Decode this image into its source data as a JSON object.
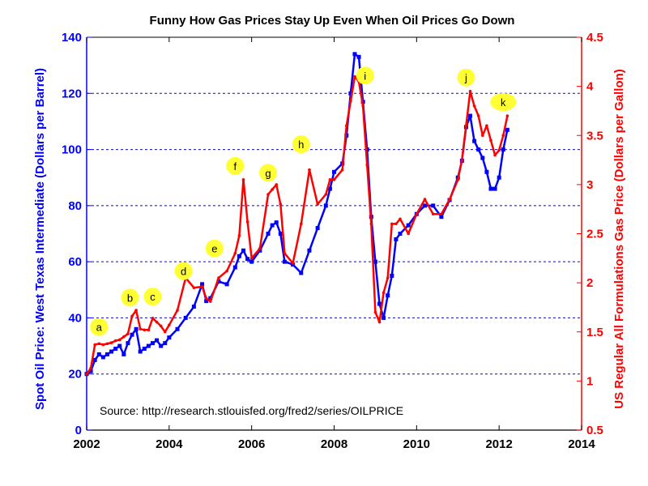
{
  "chart_data": {
    "type": "line",
    "title": "Funny How Gas Prices Stay Up Even When Oil Prices Go Down",
    "ylabel_left": "Spot Oil Price: West Texas Intermediate (Dollars per Barrel)",
    "ylabel_right": "US Regular All Formulations Gas Price (Dollars per Gallon)",
    "source": "Source: http://research.stlouisfed.org/fred2/series/OILPRICE",
    "xlim": [
      2002,
      2014
    ],
    "ylim_left": [
      0,
      140
    ],
    "ylim_right": [
      0.5,
      4.5
    ],
    "x_ticks": [
      "2002",
      "2004",
      "2006",
      "2008",
      "2010",
      "2012",
      "2014"
    ],
    "y_ticks_left": [
      "0",
      "20",
      "40",
      "60",
      "80",
      "100",
      "120",
      "140"
    ],
    "y_ticks_right": [
      "0.5",
      "1",
      "1.5",
      "2",
      "2.5",
      "3",
      "3.5",
      "4",
      "4.5"
    ],
    "grid": "dashed horizontal",
    "colors": {
      "oil": "#0000ff",
      "gas": "#ff0000",
      "annotation": "#ffff33"
    },
    "series": [
      {
        "axis": "left",
        "x": [
          2002.0,
          2002.1,
          2002.2,
          2002.3,
          2002.4,
          2002.5,
          2002.6,
          2002.7,
          2002.8,
          2002.9,
          2003.0,
          2003.1,
          2003.2,
          2003.3,
          2003.4,
          2003.5,
          2003.6,
          2003.7,
          2003.8,
          2003.9,
          2004.0,
          2004.2,
          2004.4,
          2004.6,
          2004.8,
          2004.9,
          2005.0,
          2005.2,
          2005.4,
          2005.6,
          2005.7,
          2005.8,
          2005.9,
          2006.0,
          2006.2,
          2006.4,
          2006.5,
          2006.6,
          2006.7,
          2006.8,
          2007.0,
          2007.2,
          2007.4,
          2007.6,
          2007.8,
          2007.9,
          2008.0,
          2008.2,
          2008.3,
          2008.4,
          2008.5,
          2008.6,
          2008.7,
          2008.8,
          2008.9,
          2009.0,
          2009.1,
          2009.2,
          2009.3,
          2009.4,
          2009.5,
          2009.6,
          2009.8,
          2010.0,
          2010.2,
          2010.4,
          2010.6,
          2010.8,
          2011.0,
          2011.1,
          2011.2,
          2011.3,
          2011.4,
          2011.5,
          2011.6,
          2011.7,
          2011.8,
          2011.9,
          2012.0,
          2012.1,
          2012.2
        ],
        "values": [
          20,
          21,
          25,
          27,
          26,
          27,
          28,
          29,
          30,
          27,
          31,
          34,
          36,
          28,
          29,
          30,
          31,
          32,
          30,
          31,
          33,
          36,
          40,
          44,
          52,
          46,
          47,
          53,
          52,
          58,
          62,
          64,
          61,
          60,
          64,
          70,
          73,
          74,
          70,
          60,
          59,
          56,
          64,
          72,
          80,
          86,
          92,
          95,
          105,
          120,
          134,
          133,
          117,
          100,
          76,
          60,
          45,
          40,
          48,
          55,
          68,
          70,
          73,
          77,
          80,
          80,
          76,
          82,
          90,
          96,
          108,
          112,
          103,
          100,
          97,
          92,
          86,
          86,
          90,
          100,
          107
        ]
      },
      {
        "axis": "right",
        "x": [
          2002.0,
          2002.1,
          2002.2,
          2002.3,
          2002.4,
          2002.5,
          2002.6,
          2002.7,
          2002.8,
          2002.9,
          2003.0,
          2003.1,
          2003.2,
          2003.3,
          2003.4,
          2003.5,
          2003.6,
          2003.7,
          2003.8,
          2003.9,
          2004.0,
          2004.2,
          2004.4,
          2004.6,
          2004.8,
          2004.9,
          2005.0,
          2005.2,
          2005.4,
          2005.6,
          2005.7,
          2005.8,
          2005.9,
          2006.0,
          2006.2,
          2006.4,
          2006.5,
          2006.6,
          2006.7,
          2006.8,
          2007.0,
          2007.2,
          2007.4,
          2007.6,
          2007.8,
          2007.9,
          2008.0,
          2008.2,
          2008.3,
          2008.4,
          2008.5,
          2008.6,
          2008.7,
          2008.8,
          2008.9,
          2009.0,
          2009.1,
          2009.2,
          2009.3,
          2009.4,
          2009.5,
          2009.6,
          2009.8,
          2010.0,
          2010.2,
          2010.4,
          2010.6,
          2010.8,
          2011.0,
          2011.1,
          2011.2,
          2011.3,
          2011.4,
          2011.5,
          2011.6,
          2011.7,
          2011.8,
          2011.9,
          2012.0,
          2012.1,
          2012.2
        ],
        "values": [
          1.07,
          1.13,
          1.37,
          1.38,
          1.37,
          1.38,
          1.39,
          1.41,
          1.42,
          1.45,
          1.48,
          1.66,
          1.72,
          1.53,
          1.52,
          1.52,
          1.64,
          1.6,
          1.56,
          1.5,
          1.57,
          1.72,
          2.05,
          1.95,
          1.96,
          1.84,
          1.81,
          2.05,
          2.12,
          2.3,
          2.48,
          3.05,
          2.62,
          2.25,
          2.35,
          2.9,
          2.95,
          3.0,
          2.8,
          2.3,
          2.2,
          2.6,
          3.15,
          2.8,
          2.9,
          3.05,
          3.05,
          3.15,
          3.6,
          3.85,
          4.1,
          4.05,
          3.8,
          3.2,
          2.6,
          1.7,
          1.6,
          1.9,
          2.05,
          2.6,
          2.6,
          2.65,
          2.5,
          2.7,
          2.85,
          2.7,
          2.7,
          2.85,
          3.05,
          3.25,
          3.6,
          3.95,
          3.8,
          3.7,
          3.5,
          3.6,
          3.45,
          3.3,
          3.35,
          3.5,
          3.7
        ]
      }
    ],
    "annotations": [
      {
        "label": "a",
        "x": 2002.3,
        "y": 1.55
      },
      {
        "label": "b",
        "x": 2003.05,
        "y": 1.85
      },
      {
        "label": "c",
        "x": 2003.6,
        "y": 1.86
      },
      {
        "label": "d",
        "x": 2004.35,
        "y": 2.12
      },
      {
        "label": "e",
        "x": 2005.1,
        "y": 2.35
      },
      {
        "label": "f",
        "x": 2005.6,
        "y": 3.19
      },
      {
        "label": "g",
        "x": 2006.4,
        "y": 3.12
      },
      {
        "label": "h",
        "x": 2007.2,
        "y": 3.41
      },
      {
        "label": "i",
        "x": 2008.75,
        "y": 4.11
      },
      {
        "label": "j",
        "x": 2011.2,
        "y": 4.09
      },
      {
        "label": "k",
        "x": 2012.1,
        "y": 3.84
      }
    ]
  }
}
